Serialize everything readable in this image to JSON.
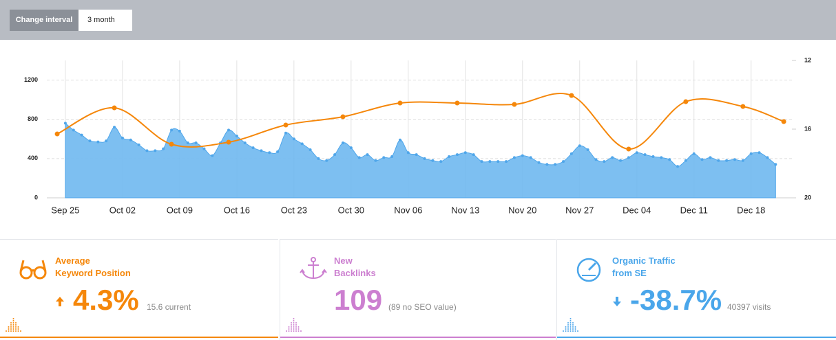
{
  "toolbar": {
    "label": "Change interval",
    "interval": "3 month"
  },
  "chart_data": {
    "type": "area-line",
    "xlim": [
      -1.27,
      90
    ],
    "xticks": [
      {
        "value": 1,
        "label": "Sep 25"
      },
      {
        "value": 8,
        "label": "Oct 02"
      },
      {
        "value": 15,
        "label": "Oct 09"
      },
      {
        "value": 22,
        "label": "Oct 16"
      },
      {
        "value": 29,
        "label": "Oct 23"
      },
      {
        "value": 36,
        "label": "Oct 30"
      },
      {
        "value": 43,
        "label": "Nov 06"
      },
      {
        "value": 50,
        "label": "Nov 13"
      },
      {
        "value": 57,
        "label": "Nov 20"
      },
      {
        "value": 64,
        "label": "Nov 27"
      },
      {
        "value": 71,
        "label": "Dec 04"
      },
      {
        "value": 78,
        "label": "Dec 11"
      },
      {
        "value": 85,
        "label": "Dec 18"
      }
    ],
    "ylim": [
      0,
      1400
    ],
    "yticks": [
      0,
      400,
      800,
      1200
    ],
    "y2lim": [
      20,
      12
    ],
    "y2ticks": [
      12,
      16,
      20
    ],
    "grid": true,
    "series": [
      {
        "kind": "area",
        "color": "#6fb8f0",
        "x": [
          1,
          2,
          3,
          4,
          5,
          6,
          7,
          8,
          9,
          10,
          11,
          12,
          13,
          14,
          15,
          16,
          17,
          18,
          19,
          20,
          21,
          22,
          23,
          24,
          25,
          26,
          27,
          28,
          29,
          30,
          31,
          32,
          33,
          34,
          35,
          36,
          37,
          38,
          39,
          40,
          41,
          42,
          43,
          44,
          45,
          46,
          47,
          48,
          49,
          50,
          51,
          52,
          53,
          54,
          55,
          56,
          57,
          58,
          59,
          60,
          61,
          62,
          63,
          64,
          65,
          66,
          67,
          68,
          69,
          70,
          71,
          72,
          73,
          74,
          75,
          76,
          77,
          78,
          79,
          80,
          81,
          82,
          83,
          84,
          85,
          86,
          87,
          88
        ],
        "values": [
          760,
          690,
          640,
          580,
          570,
          580,
          720,
          610,
          590,
          540,
          480,
          480,
          500,
          690,
          680,
          560,
          560,
          500,
          430,
          560,
          690,
          630,
          560,
          510,
          480,
          460,
          470,
          660,
          600,
          550,
          490,
          400,
          380,
          440,
          560,
          510,
          410,
          440,
          380,
          410,
          420,
          590,
          460,
          440,
          400,
          380,
          370,
          420,
          440,
          460,
          440,
          370,
          370,
          370,
          370,
          410,
          430,
          410,
          360,
          340,
          340,
          370,
          450,
          530,
          490,
          390,
          370,
          410,
          380,
          410,
          460,
          440,
          420,
          410,
          390,
          320,
          380,
          450,
          390,
          410,
          380,
          380,
          390,
          380,
          450,
          460,
          410,
          340
        ]
      },
      {
        "kind": "line",
        "color": "#f5870a",
        "axis": "y2",
        "x": [
          0,
          7,
          14,
          21,
          28,
          35,
          42,
          49,
          56,
          63,
          70,
          77,
          84,
          89
        ],
        "values": [
          16.28,
          14.76,
          16.88,
          16.76,
          15.76,
          15.28,
          14.48,
          14.48,
          14.56,
          14.04,
          17.16,
          14.4,
          14.68,
          15.56
        ]
      }
    ]
  },
  "widgets": [
    {
      "title": [
        "Average",
        "Keyword Position"
      ],
      "value": "4.3%",
      "note": "15.6 current",
      "trend": "up"
    },
    {
      "title": [
        "New",
        "Backlinks"
      ],
      "value": "109",
      "note": "(89 no SEO value)",
      "trend": "none"
    },
    {
      "title": [
        "Organic Traffic",
        "from SE"
      ],
      "value": "-38.7%",
      "note": "40397 visits",
      "trend": "down"
    }
  ]
}
